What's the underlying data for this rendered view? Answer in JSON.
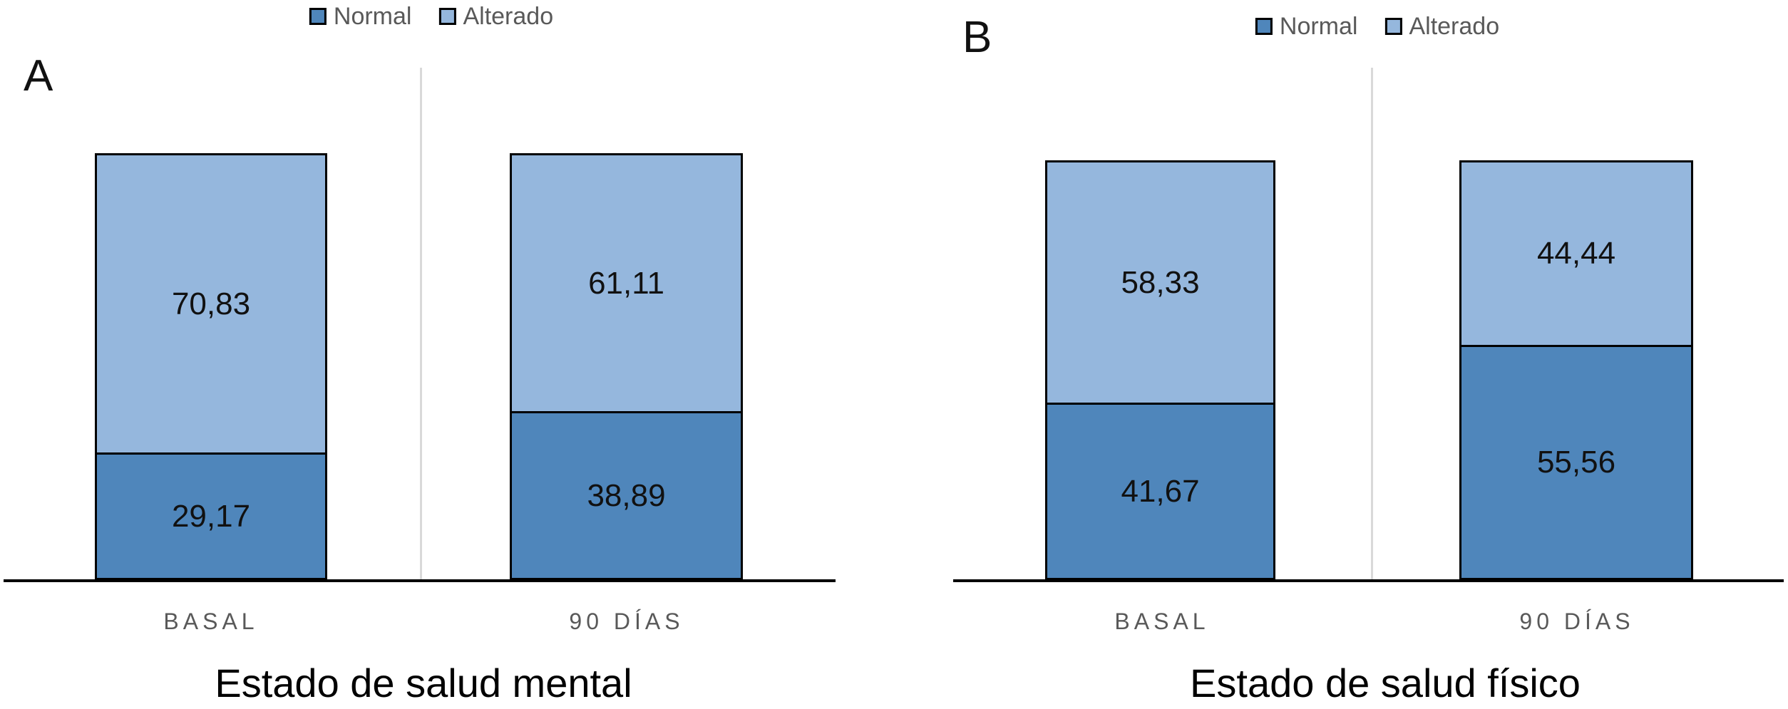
{
  "colors": {
    "normal": "#4F86BB",
    "alterado": "#95B7DD",
    "bar_border": "#000000",
    "axis": "#000000",
    "category_divider": "#D9D9D9",
    "category_text": "#595959",
    "legend_text": "#595959",
    "value_text": "#111111",
    "title_text": "#000000"
  },
  "chart_data": [
    {
      "type": "bar",
      "stacked": true,
      "panel_label": "A",
      "title": "Estado de salud mental",
      "categories": [
        "BASAL",
        "90 DÍAS"
      ],
      "series": [
        {
          "name": "Normal",
          "values": [
            29.17,
            38.89
          ],
          "labels": [
            "29,17",
            "38,89"
          ]
        },
        {
          "name": "Alterado",
          "values": [
            70.83,
            61.11
          ],
          "labels": [
            "70,83",
            "61,11"
          ]
        }
      ],
      "legend": [
        "Normal",
        "Alterado"
      ],
      "legend_position": "top",
      "ylim": [
        0,
        100
      ],
      "grid": false
    },
    {
      "type": "bar",
      "stacked": true,
      "panel_label": "B",
      "title": "Estado de salud físico",
      "categories": [
        "BASAL",
        "90 DÍAS"
      ],
      "series": [
        {
          "name": "Normal",
          "values": [
            41.67,
            55.56
          ],
          "labels": [
            "41,67",
            "55,56"
          ]
        },
        {
          "name": "Alterado",
          "values": [
            58.33,
            44.44
          ],
          "labels": [
            "58,33",
            "44,44"
          ]
        }
      ],
      "legend": [
        "Normal",
        "Alterado"
      ],
      "legend_position": "top",
      "ylim": [
        0,
        100
      ],
      "grid": false
    }
  ]
}
